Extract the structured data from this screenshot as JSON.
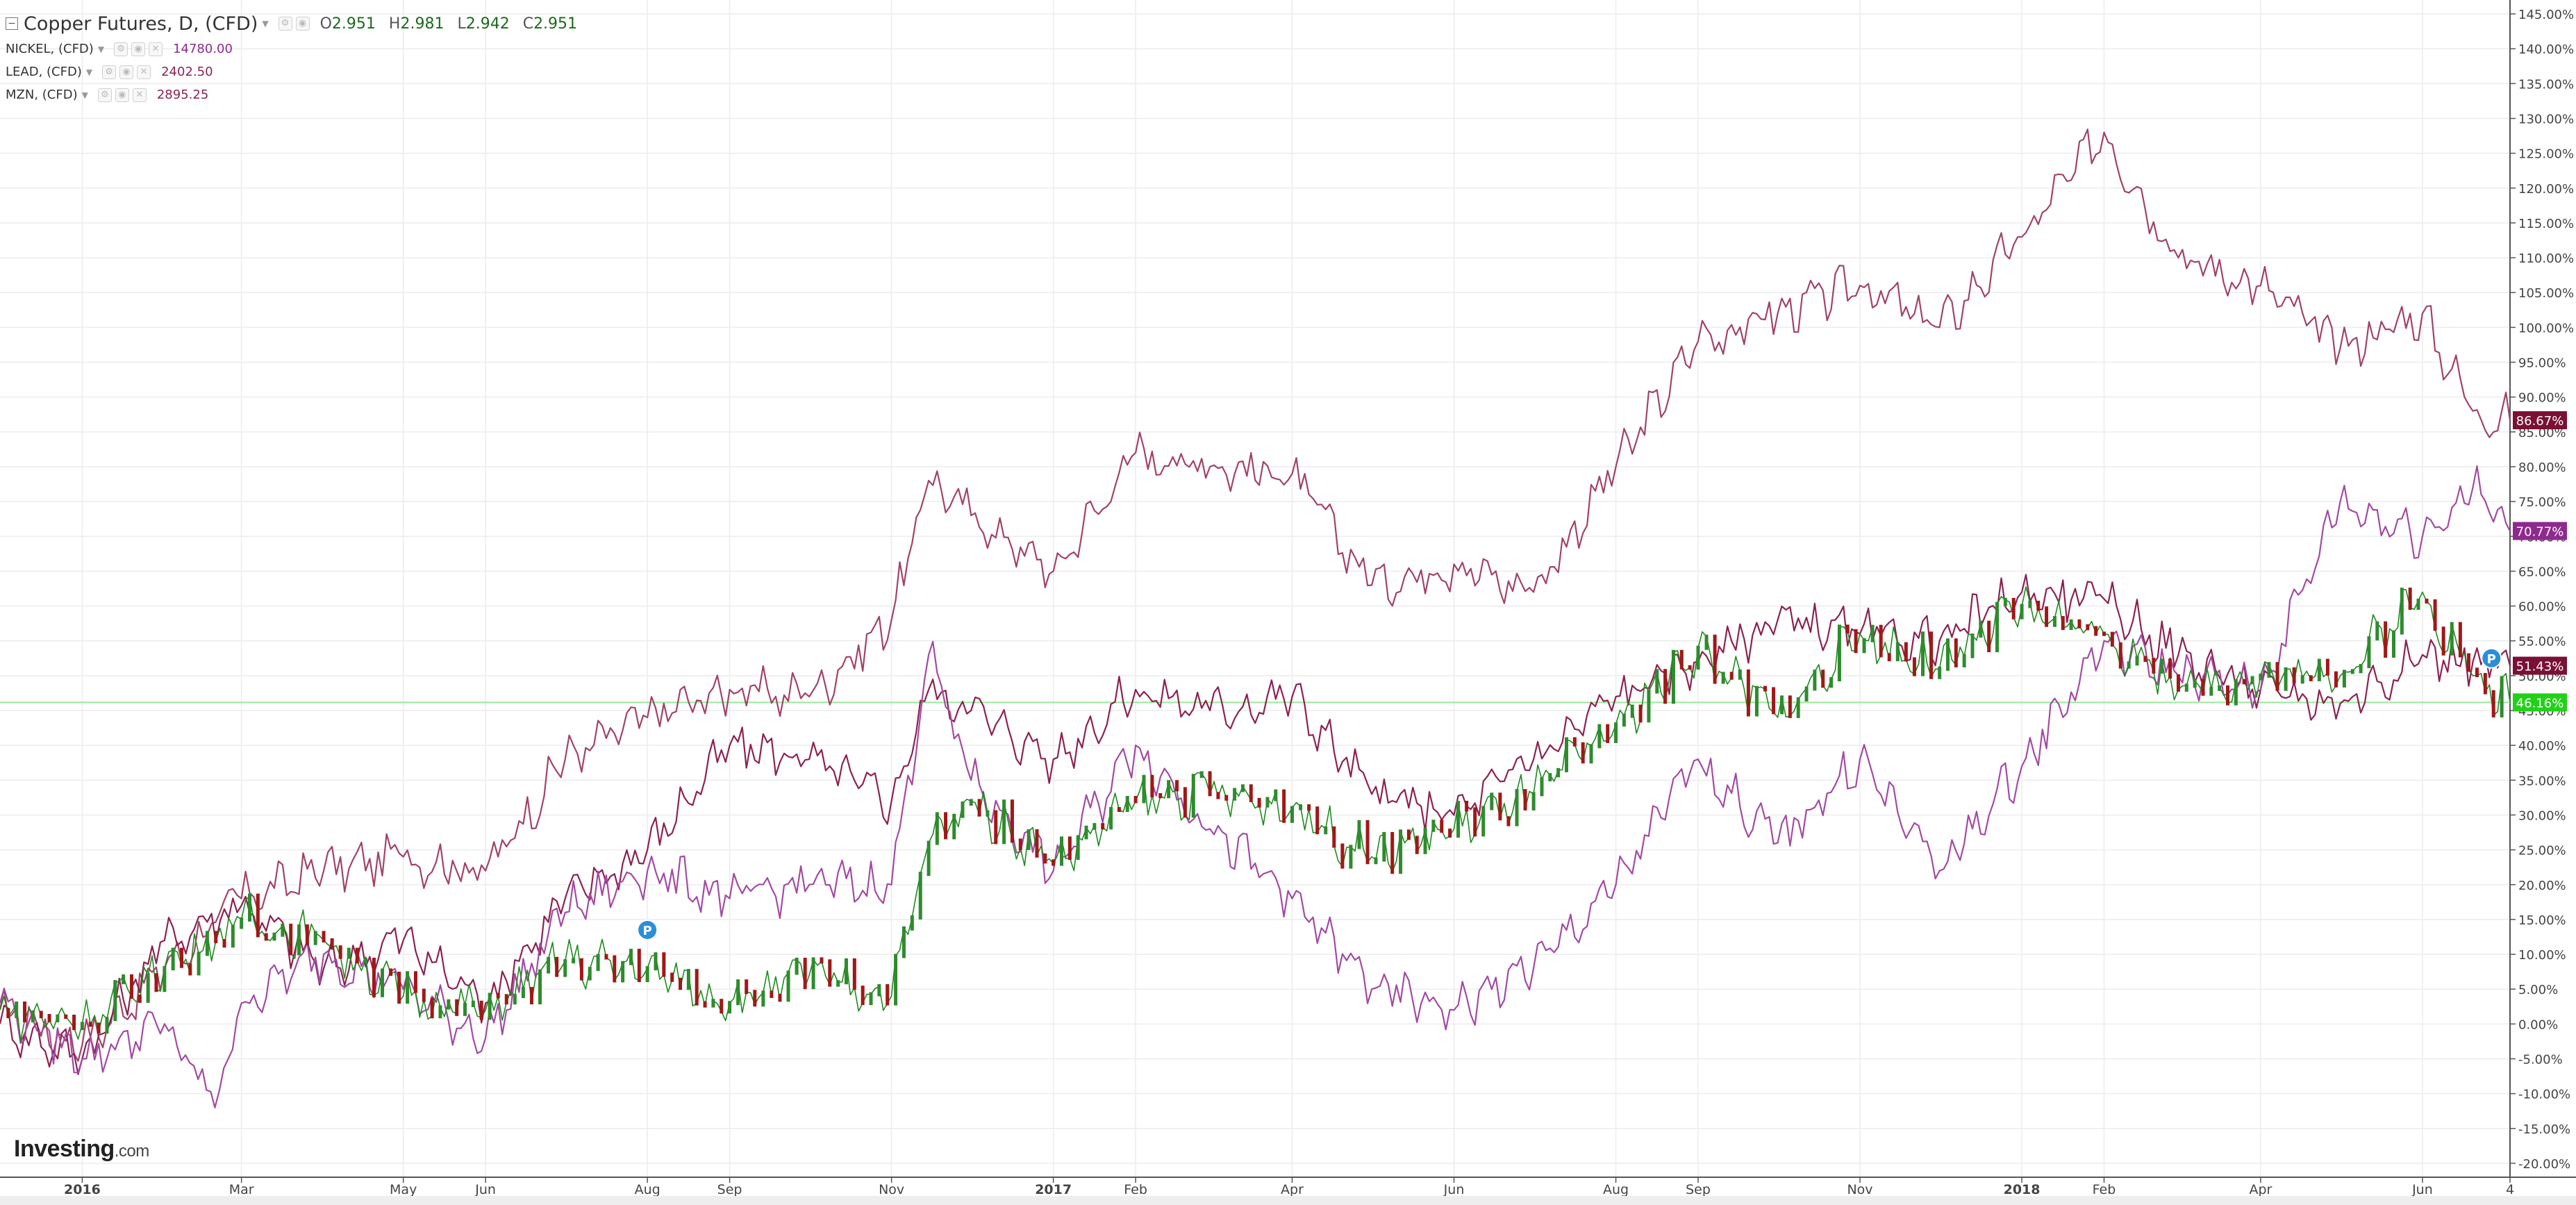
{
  "header": {
    "main_title": "Copper Futures, D, (CFD)",
    "ohlc": [
      {
        "k": "O",
        "v": "2.951"
      },
      {
        "k": "H",
        "v": "2.981"
      },
      {
        "k": "L",
        "v": "2.942"
      },
      {
        "k": "C",
        "v": "2.951"
      }
    ]
  },
  "legend": [
    {
      "name": "NICKEL, (CFD)",
      "value": "14780.00",
      "color": "#8e2a8e"
    },
    {
      "name": "LEAD, (CFD)",
      "value": "2402.50",
      "color": "#8b2252"
    },
    {
      "name": "MZN, (CFD)",
      "value": "2895.25",
      "color": "#8b2252"
    }
  ],
  "branding": {
    "name": "Investing",
    "suffix": ".com"
  },
  "chart_data": {
    "type": "line",
    "title": "Copper Futures, D, (CFD)",
    "y_axis": {
      "ticks": [
        "145.00%",
        "140.00%",
        "135.00%",
        "130.00%",
        "125.00%",
        "120.00%",
        "115.00%",
        "110.00%",
        "105.00%",
        "100.00%",
        "95.00%",
        "90.00%",
        "85.00%",
        "80.00%",
        "75.00%",
        "70.00%",
        "65.00%",
        "60.00%",
        "55.00%",
        "50.00%",
        "45.00%",
        "40.00%",
        "35.00%",
        "30.00%",
        "25.00%",
        "20.00%",
        "15.00%",
        "10.00%",
        "5.00%",
        "0.00%",
        "-5.00%",
        "-10.00%",
        "-15.00%",
        "-20.00%"
      ],
      "min": -22,
      "max": 147,
      "unit": "%"
    },
    "x_axis": {
      "ticks": [
        {
          "label": "2016",
          "bold": true,
          "date": "2016-01-01"
        },
        {
          "label": "Mar",
          "bold": false,
          "date": "2016-03-01"
        },
        {
          "label": "May",
          "bold": false,
          "date": "2016-05-01"
        },
        {
          "label": "Jun",
          "bold": false,
          "date": "2016-06-01"
        },
        {
          "label": "Aug",
          "bold": false,
          "date": "2016-08-01"
        },
        {
          "label": "Sep",
          "bold": false,
          "date": "2016-09-01"
        },
        {
          "label": "Nov",
          "bold": false,
          "date": "2016-11-01"
        },
        {
          "label": "2017",
          "bold": true,
          "date": "2017-01-01"
        },
        {
          "label": "Feb",
          "bold": false,
          "date": "2017-02-01"
        },
        {
          "label": "Apr",
          "bold": false,
          "date": "2017-04-01"
        },
        {
          "label": "Jun",
          "bold": false,
          "date": "2017-06-01"
        },
        {
          "label": "Aug",
          "bold": false,
          "date": "2017-08-01"
        },
        {
          "label": "Sep",
          "bold": false,
          "date": "2017-09-01"
        },
        {
          "label": "Nov",
          "bold": false,
          "date": "2017-11-01"
        },
        {
          "label": "2018",
          "bold": true,
          "date": "2018-01-01"
        },
        {
          "label": "Feb",
          "bold": false,
          "date": "2018-02-01"
        },
        {
          "label": "Apr",
          "bold": false,
          "date": "2018-04-01"
        },
        {
          "label": "Jun",
          "bold": false,
          "date": "2018-06-01"
        },
        {
          "label": "4",
          "bold": false,
          "date": "2018-07-04"
        }
      ],
      "start": "2015-12-01",
      "end": "2018-07-04"
    },
    "price_labels": [
      {
        "text": "86.67%",
        "value": 86.67,
        "bg": "#7a1035",
        "fg": "#ffffff"
      },
      {
        "text": "70.77%",
        "value": 70.77,
        "bg": "#8e2a8e",
        "fg": "#ffffff"
      },
      {
        "text": "51.43%",
        "value": 51.43,
        "bg": "#7a1035",
        "fg": "#ffffff"
      },
      {
        "text": "46.16%",
        "value": 46.16,
        "bg": "#23d018",
        "fg": "#ffffff"
      }
    ],
    "reference_line": {
      "value": 46.16,
      "color": "#9be89b"
    },
    "series": [
      {
        "name": "MZN, (CFD)",
        "color": "#a0436a",
        "x": [
          "2015-12-01",
          "2016-01-01",
          "2016-02-01",
          "2016-03-01",
          "2016-04-01",
          "2016-05-01",
          "2016-06-01",
          "2016-07-01",
          "2016-08-01",
          "2016-09-01",
          "2016-10-01",
          "2016-11-01",
          "2016-11-15",
          "2016-12-01",
          "2017-01-01",
          "2017-02-01",
          "2017-03-01",
          "2017-04-01",
          "2017-05-01",
          "2017-06-01",
          "2017-07-01",
          "2017-08-01",
          "2017-09-01",
          "2017-10-01",
          "2017-11-01",
          "2017-12-01",
          "2018-01-01",
          "2018-02-01",
          "2018-03-01",
          "2018-04-01",
          "2018-05-01",
          "2018-06-01",
          "2018-06-20",
          "2018-07-04"
        ],
        "values": [
          2,
          -3,
          8,
          18,
          22,
          24,
          22,
          38,
          44,
          48,
          47,
          58,
          78,
          73,
          65,
          82,
          80,
          79,
          63,
          66,
          62,
          80,
          98,
          102,
          106,
          100,
          113,
          128,
          110,
          106,
          97,
          102,
          88,
          86.67
        ]
      },
      {
        "name": "LEAD, (CFD)",
        "color": "#8b2252",
        "x": [
          "2015-12-01",
          "2016-01-01",
          "2016-02-01",
          "2016-03-01",
          "2016-04-01",
          "2016-05-01",
          "2016-06-01",
          "2016-07-01",
          "2016-08-01",
          "2016-09-01",
          "2016-10-01",
          "2016-11-01",
          "2016-11-15",
          "2016-12-01",
          "2017-01-01",
          "2017-02-01",
          "2017-03-01",
          "2017-04-01",
          "2017-05-01",
          "2017-06-01",
          "2017-07-01",
          "2017-08-01",
          "2017-09-01",
          "2017-10-01",
          "2017-11-01",
          "2017-12-01",
          "2018-01-01",
          "2018-02-01",
          "2018-03-01",
          "2018-04-01",
          "2018-05-01",
          "2018-06-01",
          "2018-06-20",
          "2018-07-04"
        ],
        "values": [
          0,
          -5,
          12,
          17,
          8,
          12,
          3,
          18,
          25,
          40,
          38,
          32,
          48,
          45,
          38,
          48,
          45,
          47,
          33,
          30,
          38,
          47,
          52,
          58,
          56,
          55,
          62,
          61,
          53,
          48,
          46,
          53,
          52,
          51.43
        ]
      },
      {
        "name": "NICKEL, (CFD)",
        "color": "#a24ba2",
        "x": [
          "2015-12-01",
          "2016-01-01",
          "2016-02-01",
          "2016-02-20",
          "2016-03-01",
          "2016-04-01",
          "2016-05-01",
          "2016-06-01",
          "2016-07-01",
          "2016-08-01",
          "2016-09-01",
          "2016-10-01",
          "2016-11-01",
          "2016-11-15",
          "2016-12-01",
          "2017-01-01",
          "2017-02-01",
          "2017-03-01",
          "2017-04-01",
          "2017-05-01",
          "2017-06-01",
          "2017-07-01",
          "2017-08-01",
          "2017-09-01",
          "2017-10-01",
          "2017-11-01",
          "2017-12-01",
          "2018-01-01",
          "2018-02-01",
          "2018-03-01",
          "2018-04-01",
          "2018-05-01",
          "2018-06-01",
          "2018-06-20",
          "2018-07-04"
        ],
        "values": [
          3,
          -5,
          0,
          -12,
          3,
          10,
          5,
          -2,
          16,
          22,
          18,
          20,
          20,
          53,
          35,
          22,
          40,
          28,
          18,
          5,
          2,
          8,
          20,
          38,
          26,
          38,
          22,
          37,
          55,
          50,
          48,
          75,
          70,
          77,
          70.77
        ]
      },
      {
        "name": "Copper Futures, D, (CFD)",
        "color": "#1f8a1f",
        "x": [
          "2015-12-01",
          "2016-01-01",
          "2016-02-01",
          "2016-03-01",
          "2016-04-01",
          "2016-05-01",
          "2016-06-01",
          "2016-07-01",
          "2016-08-01",
          "2016-09-01",
          "2016-10-01",
          "2016-11-01",
          "2016-11-15",
          "2016-12-01",
          "2017-01-01",
          "2017-02-01",
          "2017-03-01",
          "2017-04-01",
          "2017-05-01",
          "2017-06-01",
          "2017-07-01",
          "2017-08-01",
          "2017-09-01",
          "2017-10-01",
          "2017-11-01",
          "2017-12-01",
          "2018-01-01",
          "2018-02-01",
          "2018-03-01",
          "2018-04-01",
          "2018-05-01",
          "2018-06-01",
          "2018-06-20",
          "2018-07-04"
        ],
        "values": [
          2,
          0,
          8,
          15,
          12,
          4,
          2,
          9,
          8,
          3,
          7,
          4,
          26,
          32,
          23,
          32,
          33,
          31,
          24,
          28,
          33,
          43,
          54,
          44,
          56,
          51,
          60,
          56,
          48,
          50,
          50,
          62,
          50,
          46.16
        ]
      }
    ],
    "markers": [
      {
        "label": "P",
        "date": "2016-08-01",
        "value": 13.5
      },
      {
        "label": "P",
        "date": "2018-06-27",
        "value": 52.5
      }
    ],
    "grid": true,
    "legend_position": "top-left"
  }
}
